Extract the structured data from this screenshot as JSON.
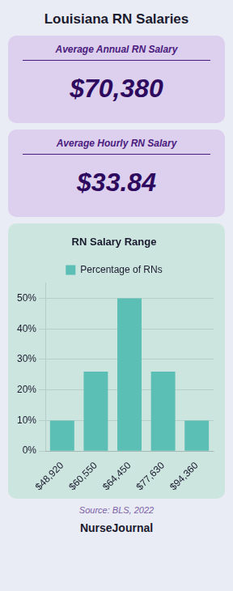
{
  "chart_data": {
    "type": "bar",
    "title": "Louisiana RN Salaries",
    "subtitle": "RN Salary Range",
    "annotations": [
      "Average Annual RN Salary",
      "$70,380",
      "Average Hourly RN Salary",
      "$33.84",
      "Source: BLS, 2022",
      "NurseJournal"
    ],
    "categories": [
      "$48,920",
      "$60,550",
      "$64,450",
      "$77,630",
      "$94,360"
    ],
    "series": [
      {
        "name": "Percentage of RNs",
        "color": "#5bbfb5",
        "values": [
          10,
          26,
          50,
          26,
          10
        ]
      }
    ],
    "ylim": [
      0,
      55
    ],
    "yticks": [
      {
        "value": 0,
        "label": "0%"
      },
      {
        "value": 10,
        "label": "10%"
      },
      {
        "value": 20,
        "label": "20%"
      },
      {
        "value": 30,
        "label": "30%"
      },
      {
        "value": 40,
        "label": "40%"
      },
      {
        "value": 50,
        "label": "50%"
      }
    ],
    "grid": true,
    "legend": "top"
  }
}
